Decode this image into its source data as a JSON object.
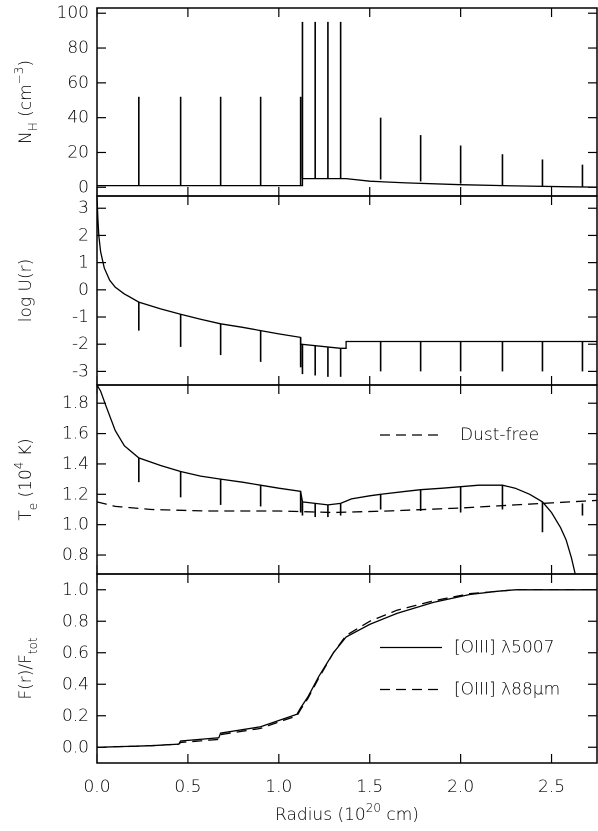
{
  "chart_data": [
    {
      "type": "line",
      "ylabel": [
        {
          "text": "N"
        },
        {
          "text": "H",
          "shift": "sub"
        },
        {
          "text": " (cm"
        },
        {
          "text": "−3",
          "shift": "super"
        },
        {
          "text": ")"
        }
      ],
      "xlim": [
        0,
        2.75
      ],
      "xticks": [
        0,
        0.5,
        1,
        1.5,
        2,
        2.5
      ],
      "ylim": [
        -5,
        103
      ],
      "yticks": [
        0,
        20,
        40,
        60,
        80,
        100
      ],
      "series": [
        {
          "color": "#000000",
          "dash": false,
          "x": [
            0,
            1.13,
            1.13,
            1.37,
            1.37,
            1.5,
            1.7,
            2.0,
            2.3,
            2.6,
            2.75
          ],
          "values": [
            1,
            1,
            5,
            5,
            5,
            3.5,
            2.5,
            1.5,
            0.8,
            0.3,
            0.1
          ]
        }
      ],
      "spikes": {
        "x": [
          0.23,
          0.46,
          0.68,
          0.9,
          1.12,
          1.13,
          1.2,
          1.27,
          1.34,
          1.56,
          1.78,
          2.0,
          2.23,
          2.45,
          2.67
        ],
        "from": [
          1,
          1,
          1,
          1,
          1,
          5,
          5,
          5,
          5,
          4.5,
          3.4,
          2.1,
          1.2,
          0.7,
          0.3
        ],
        "to": [
          52,
          52,
          52,
          52,
          52,
          95,
          95,
          95,
          95,
          40,
          30,
          24,
          19,
          16,
          13
        ]
      }
    },
    {
      "type": "line",
      "ylabel": [
        {
          "text": "log U(r)"
        }
      ],
      "xlim": [
        0,
        2.75
      ],
      "xticks": [
        0,
        0.5,
        1,
        1.5,
        2,
        2.5
      ],
      "ylim": [
        -3.5,
        3.45
      ],
      "yticks": [
        -3,
        -2,
        -1,
        0,
        1,
        2,
        3
      ],
      "series": [
        {
          "color": "#000000",
          "dash": false,
          "x": [
            0,
            0.005,
            0.01,
            0.02,
            0.04,
            0.07,
            0.1,
            0.15,
            0.23,
            0.35,
            0.46,
            0.57,
            0.68,
            0.8,
            0.9,
            1.0,
            1.12,
            1.12,
            1.34,
            1.37,
            1.37,
            2.75
          ],
          "values": [
            3.4,
            2.6,
            2.0,
            1.4,
            0.8,
            0.35,
            0.1,
            -0.15,
            -0.45,
            -0.7,
            -0.9,
            -1.08,
            -1.25,
            -1.38,
            -1.5,
            -1.62,
            -1.75,
            -2.0,
            -2.15,
            -2.15,
            -1.9,
            -1.9
          ]
        }
      ],
      "spikes": {
        "x": [
          0.23,
          0.46,
          0.68,
          0.9,
          1.12,
          1.13,
          1.2,
          1.27,
          1.34,
          1.56,
          1.78,
          2.0,
          2.23,
          2.45,
          2.67
        ],
        "from": [
          -0.45,
          -0.9,
          -1.25,
          -1.5,
          -1.75,
          -2.0,
          -2.05,
          -2.1,
          -2.15,
          -1.9,
          -1.9,
          -1.9,
          -1.9,
          -1.9,
          -1.9
        ],
        "to": [
          -1.5,
          -2.1,
          -2.4,
          -2.65,
          -2.85,
          -3.1,
          -3.15,
          -3.2,
          -3.2,
          -3.0,
          -3.0,
          -3.0,
          -3.0,
          -3.0,
          -3.0
        ]
      }
    },
    {
      "type": "line",
      "ylabel": [
        {
          "text": "T"
        },
        {
          "text": "e",
          "shift": "sub"
        },
        {
          "text": " (10"
        },
        {
          "text": "4",
          "shift": "super"
        },
        {
          "text": " K)"
        }
      ],
      "xlim": [
        0,
        2.75
      ],
      "xticks": [
        0,
        0.5,
        1,
        1.5,
        2,
        2.5
      ],
      "ylim": [
        0.675,
        1.92
      ],
      "yticks": [
        0.8,
        {
          "value": 1,
          "label": "1.0"
        },
        1.2,
        1.4,
        1.6,
        1.8
      ],
      "legend": "upper right",
      "series": [
        {
          "color": "#000000",
          "dash": false,
          "x": [
            0,
            0.02,
            0.05,
            0.1,
            0.15,
            0.23,
            0.35,
            0.46,
            0.57,
            0.68,
            0.8,
            0.9,
            1.0,
            1.12,
            1.13,
            1.2,
            1.27,
            1.34,
            1.4,
            1.5,
            1.56,
            1.7,
            1.78,
            1.9,
            2.0,
            2.1,
            2.23,
            2.3,
            2.38,
            2.45,
            2.5,
            2.55,
            2.58,
            2.61,
            2.63
          ],
          "values": [
            1.92,
            1.88,
            1.78,
            1.62,
            1.52,
            1.44,
            1.39,
            1.35,
            1.32,
            1.3,
            1.28,
            1.26,
            1.24,
            1.22,
            1.15,
            1.14,
            1.13,
            1.14,
            1.17,
            1.19,
            1.2,
            1.22,
            1.23,
            1.24,
            1.25,
            1.26,
            1.26,
            1.24,
            1.2,
            1.15,
            1.08,
            0.98,
            0.9,
            0.78,
            0.675
          ]
        },
        {
          "name": "Dust-free",
          "color": "#000000",
          "dash": true,
          "x": [
            0,
            0.1,
            0.3,
            0.6,
            1.0,
            1.3,
            1.6,
            2.0,
            2.3,
            2.6,
            2.75
          ],
          "values": [
            1.15,
            1.12,
            1.1,
            1.09,
            1.09,
            1.08,
            1.09,
            1.11,
            1.13,
            1.15,
            1.16
          ]
        }
      ],
      "spikes": {
        "x": [
          0.23,
          0.46,
          0.68,
          0.9,
          1.12,
          1.13,
          1.2,
          1.27,
          1.34,
          1.56,
          1.78,
          2.0,
          2.23,
          2.45,
          2.67
        ],
        "from": [
          1.44,
          1.35,
          1.3,
          1.26,
          1.22,
          1.15,
          1.14,
          1.13,
          1.14,
          1.2,
          1.23,
          1.25,
          1.26,
          1.15,
          1.14
        ],
        "to": [
          1.28,
          1.18,
          1.13,
          1.12,
          1.08,
          1.06,
          1.05,
          1.05,
          1.06,
          1.1,
          1.09,
          1.08,
          1.1,
          0.95,
          1.06
        ]
      }
    },
    {
      "type": "line",
      "ylabel": [
        {
          "text": "F(r)/F"
        },
        {
          "text": "tot",
          "shift": "sub"
        }
      ],
      "xlabel": [
        {
          "text": "Radius (10"
        },
        {
          "text": "20",
          "shift": "super"
        },
        {
          "text": " cm)"
        }
      ],
      "xlim": [
        0,
        2.75
      ],
      "xticks": [
        {
          "value": 0,
          "label": "0.0"
        },
        0.5,
        {
          "value": 1,
          "label": "1.0"
        },
        1.5,
        {
          "value": 2,
          "label": "2.0"
        },
        2.5
      ],
      "ylim": [
        -0.1,
        1.1
      ],
      "yticks": [
        {
          "value": 0,
          "label": "0.0"
        },
        0.2,
        0.4,
        0.6,
        0.8,
        {
          "value": 1,
          "label": "1.0"
        }
      ],
      "legend": "center right",
      "series": [
        {
          "name": "[OIII] λ5007",
          "color": "#000000",
          "dash": false,
          "x": [
            0,
            0.3,
            0.45,
            0.46,
            0.67,
            0.68,
            0.9,
            1.0,
            1.1,
            1.12,
            1.16,
            1.22,
            1.3,
            1.37,
            1.5,
            1.65,
            1.85,
            2.05,
            2.2,
            2.3,
            2.75
          ],
          "values": [
            0,
            0.01,
            0.02,
            0.04,
            0.06,
            0.09,
            0.13,
            0.17,
            0.21,
            0.25,
            0.32,
            0.45,
            0.6,
            0.7,
            0.78,
            0.85,
            0.92,
            0.97,
            0.99,
            1.0,
            1.0
          ]
        },
        {
          "name": "[OIII] λ88μm",
          "color": "#000000",
          "dash": true,
          "x": [
            0,
            0.3,
            0.45,
            0.46,
            0.67,
            0.68,
            0.9,
            1.0,
            1.1,
            1.12,
            1.16,
            1.22,
            1.3,
            1.37,
            1.5,
            1.65,
            1.85,
            2.05,
            2.2,
            2.3,
            2.75
          ],
          "values": [
            0,
            0.01,
            0.02,
            0.03,
            0.05,
            0.08,
            0.12,
            0.16,
            0.2,
            0.24,
            0.31,
            0.44,
            0.6,
            0.71,
            0.8,
            0.87,
            0.93,
            0.975,
            0.99,
            1.0,
            1.0
          ]
        }
      ]
    }
  ]
}
